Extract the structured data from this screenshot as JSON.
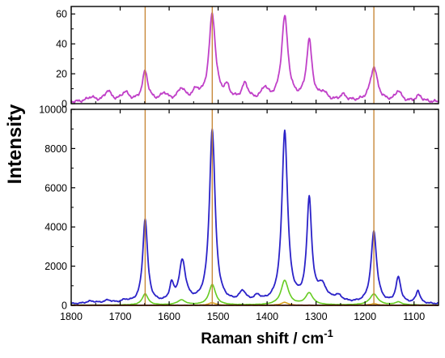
{
  "chart_data": {
    "type": "line",
    "xlabel": "Raman shift / cm",
    "xlabel_superscript": "-1",
    "ylabel": "Intensity",
    "x_reversed": true,
    "xlim": [
      1800,
      1050
    ],
    "x_ticks": [
      1800,
      1700,
      1600,
      1500,
      1400,
      1300,
      1200,
      1100
    ],
    "reference_lines_x": [
      1649,
      1512,
      1182
    ],
    "reference_line_color": "#c8893a",
    "panels": [
      {
        "id": "top",
        "ylim": [
          0,
          65
        ],
        "y_ticks": [
          0,
          20,
          40,
          60
        ],
        "series": [
          {
            "color": "#c040c8",
            "baseline": 1,
            "peaks": [
              {
                "x": 1760,
                "y": 3,
                "w": 10
              },
              {
                "x": 1725,
                "y": 7,
                "w": 8
              },
              {
                "x": 1690,
                "y": 6,
                "w": 9
              },
              {
                "x": 1649,
                "y": 20,
                "w": 7
              },
              {
                "x": 1610,
                "y": 5,
                "w": 8
              },
              {
                "x": 1575,
                "y": 8,
                "w": 9
              },
              {
                "x": 1545,
                "y": 6,
                "w": 8
              },
              {
                "x": 1512,
                "y": 58,
                "w": 8
              },
              {
                "x": 1482,
                "y": 8,
                "w": 7
              },
              {
                "x": 1445,
                "y": 11,
                "w": 8
              },
              {
                "x": 1405,
                "y": 8,
                "w": 8
              },
              {
                "x": 1364,
                "y": 56,
                "w": 8
              },
              {
                "x": 1314,
                "y": 40,
                "w": 7
              },
              {
                "x": 1285,
                "y": 5,
                "w": 8
              },
              {
                "x": 1245,
                "y": 4,
                "w": 8
              },
              {
                "x": 1182,
                "y": 23,
                "w": 9
              },
              {
                "x": 1132,
                "y": 7,
                "w": 7
              },
              {
                "x": 1090,
                "y": 4,
                "w": 8
              }
            ]
          }
        ]
      },
      {
        "id": "bottom",
        "ylim": [
          0,
          10000
        ],
        "y_ticks": [
          0,
          2000,
          4000,
          6000,
          8000,
          10000
        ],
        "series": [
          {
            "color": "#2b22c8",
            "baseline": 60,
            "peaks": [
              {
                "x": 1760,
                "y": 120,
                "w": 12
              },
              {
                "x": 1725,
                "y": 150,
                "w": 10
              },
              {
                "x": 1690,
                "y": 130,
                "w": 10
              },
              {
                "x": 1649,
                "y": 4300,
                "w": 6
              },
              {
                "x": 1595,
                "y": 850,
                "w": 5
              },
              {
                "x": 1573,
                "y": 2100,
                "w": 8
              },
              {
                "x": 1512,
                "y": 8850,
                "w": 7
              },
              {
                "x": 1450,
                "y": 520,
                "w": 8
              },
              {
                "x": 1420,
                "y": 280,
                "w": 8
              },
              {
                "x": 1364,
                "y": 8750,
                "w": 7
              },
              {
                "x": 1314,
                "y": 5200,
                "w": 6
              },
              {
                "x": 1288,
                "y": 800,
                "w": 12
              },
              {
                "x": 1255,
                "y": 300,
                "w": 10
              },
              {
                "x": 1182,
                "y": 3650,
                "w": 7
              },
              {
                "x": 1132,
                "y": 1300,
                "w": 6
              },
              {
                "x": 1092,
                "y": 650,
                "w": 5
              }
            ]
          },
          {
            "color": "#66cc22",
            "baseline": 10,
            "peaks": [
              {
                "x": 1649,
                "y": 580,
                "w": 7
              },
              {
                "x": 1575,
                "y": 250,
                "w": 10
              },
              {
                "x": 1512,
                "y": 1050,
                "w": 8
              },
              {
                "x": 1364,
                "y": 1250,
                "w": 9
              },
              {
                "x": 1314,
                "y": 600,
                "w": 9
              },
              {
                "x": 1182,
                "y": 560,
                "w": 10
              },
              {
                "x": 1132,
                "y": 150,
                "w": 8
              }
            ]
          },
          {
            "color": "#d8a020",
            "baseline": 0,
            "peaks": [
              {
                "x": 1512,
                "y": 130,
                "w": 9
              },
              {
                "x": 1364,
                "y": 150,
                "w": 9
              },
              {
                "x": 1182,
                "y": 80,
                "w": 10
              }
            ]
          },
          {
            "color": "#e03020",
            "baseline": 5,
            "peaks": []
          }
        ]
      }
    ]
  }
}
